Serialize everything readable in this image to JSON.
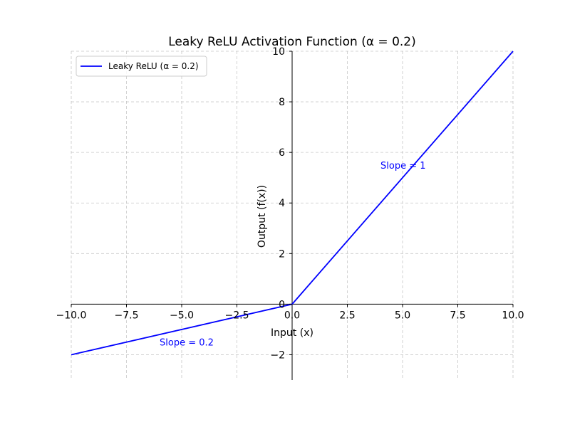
{
  "chart_data": {
    "type": "line",
    "title": "Leaky ReLU Activation Function (α = 0.2)",
    "xlabel": "Input (x)",
    "ylabel": "Output (f(x))",
    "xlim": [
      -10,
      10
    ],
    "ylim": [
      -3,
      10
    ],
    "grid": true,
    "legend_position": "top-left",
    "x_ticks": [
      -10,
      -7.5,
      -5,
      -2.5,
      0,
      2.5,
      5,
      7.5,
      10
    ],
    "x_tick_labels": [
      "−10.0",
      "−7.5",
      "−5.0",
      "−2.5",
      "0.0",
      "2.5",
      "5.0",
      "7.5",
      "10.0"
    ],
    "y_ticks": [
      -2,
      0,
      2,
      4,
      6,
      8,
      10
    ],
    "y_tick_labels": [
      "−2",
      "0",
      "2",
      "4",
      "6",
      "8",
      "10"
    ],
    "series": [
      {
        "name": "Leaky ReLU (α = 0.2)",
        "color": "#0000ff",
        "x": [
          -10,
          0,
          10
        ],
        "y": [
          -2,
          0,
          10
        ]
      }
    ],
    "annotations": [
      {
        "text": "Slope = 1",
        "x": 4,
        "y": 5.5,
        "color": "#0000ff"
      },
      {
        "text": "Slope = 0.2",
        "x": -6,
        "y": -1.5,
        "color": "#0000ff"
      }
    ]
  }
}
